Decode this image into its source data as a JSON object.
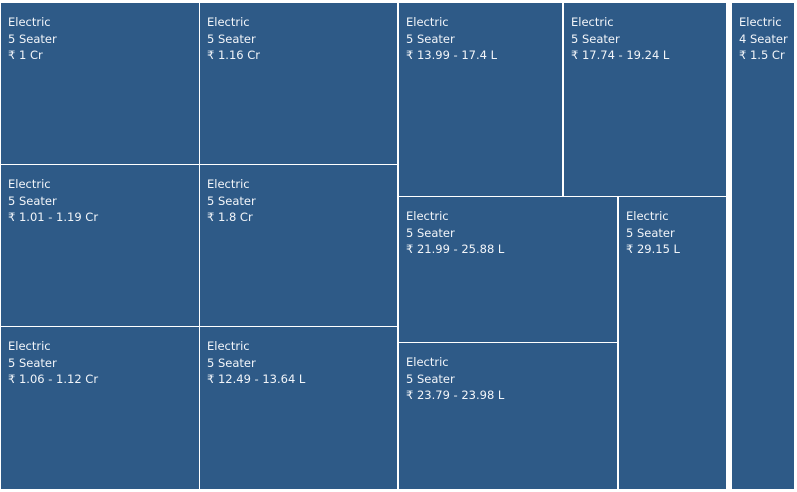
{
  "chart_data": {
    "type": "treemap",
    "title": "",
    "colors": {
      "tile": "#2e5a87",
      "text": "#f2f5f9",
      "border": "#ffffff"
    },
    "items": [
      {
        "fuel": "Electric",
        "seating": "5 Seater",
        "price": "₹ 1 Cr"
      },
      {
        "fuel": "Electric",
        "seating": "5 Seater",
        "price": "₹ 1.16 Cr"
      },
      {
        "fuel": "Electric",
        "seating": "5 Seater",
        "price": "₹ 13.99 - 17.4 L"
      },
      {
        "fuel": "Electric",
        "seating": "5 Seater",
        "price": "₹ 17.74 - 19.24 L"
      },
      {
        "fuel": "Electric",
        "seating": "4 Seater",
        "price": "₹ 1.5 Cr"
      },
      {
        "fuel": "Electric",
        "seating": "5 Seater",
        "price": "₹ 1.01 - 1.19 Cr"
      },
      {
        "fuel": "Electric",
        "seating": "5 Seater",
        "price": "₹ 1.8 Cr"
      },
      {
        "fuel": "Electric",
        "seating": "5 Seater",
        "price": "₹ 21.99 - 25.88 L"
      },
      {
        "fuel": "Electric",
        "seating": "5 Seater",
        "price": "₹ 29.15 L"
      },
      {
        "fuel": "Electric",
        "seating": "5 Seater",
        "price": "₹ 1.06 - 1.12 Cr"
      },
      {
        "fuel": "Electric",
        "seating": "5 Seater",
        "price": "₹ 12.49 - 13.64 L"
      },
      {
        "fuel": "Electric",
        "seating": "5 Seater",
        "price": "₹ 23.79 - 23.98 L"
      }
    ]
  }
}
